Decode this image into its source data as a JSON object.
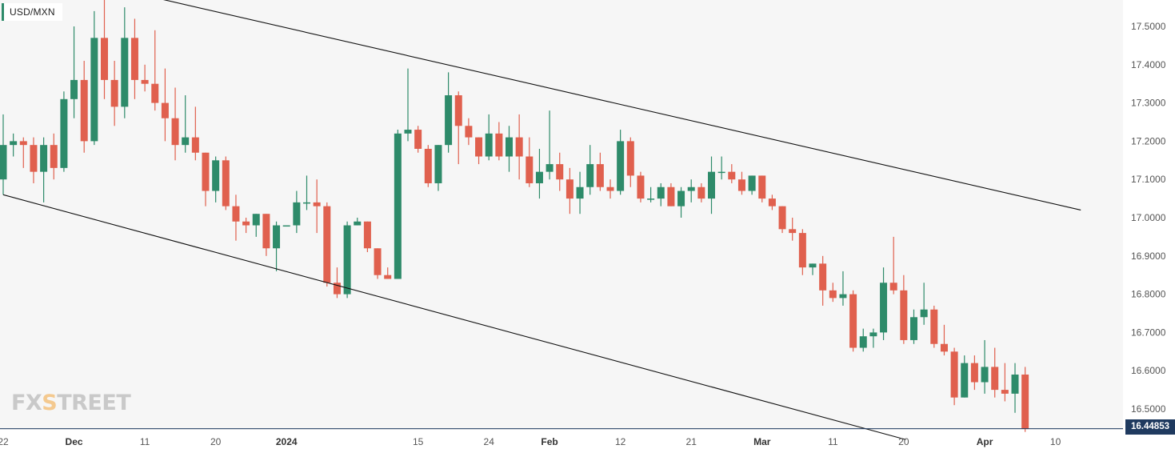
{
  "symbol": "USD/MXN",
  "logo": {
    "fx": "FX",
    "x": "S",
    "street": "TREET"
  },
  "last_price": "16.44853",
  "colors": {
    "up": "#2e8b6a",
    "down": "#e0604e",
    "channel": "#111111",
    "price_line": "#1f3a5f",
    "background": "#f6f6f6"
  },
  "chart_data": {
    "type": "candlestick",
    "title": "USD/MXN",
    "interval": "daily",
    "ylim": [
      16.42,
      17.58
    ],
    "y_ticks": [
      "17.5000",
      "17.4000",
      "17.3000",
      "17.2000",
      "17.1000",
      "17.0000",
      "16.9000",
      "16.8000",
      "16.7000",
      "16.6000",
      "16.5000"
    ],
    "x_ticks": [
      {
        "label": "22",
        "index": 0,
        "bold": false
      },
      {
        "label": "Dec",
        "index": 7,
        "bold": true
      },
      {
        "label": "11",
        "index": 14,
        "bold": false
      },
      {
        "label": "20",
        "index": 21,
        "bold": false
      },
      {
        "label": "2024",
        "index": 28,
        "bold": true
      },
      {
        "label": "15",
        "index": 41,
        "bold": false
      },
      {
        "label": "24",
        "index": 48,
        "bold": false
      },
      {
        "label": "Feb",
        "index": 54,
        "bold": true
      },
      {
        "label": "12",
        "index": 61,
        "bold": false
      },
      {
        "label": "21",
        "index": 68,
        "bold": false
      },
      {
        "label": "Mar",
        "index": 75,
        "bold": true
      },
      {
        "label": "11",
        "index": 82,
        "bold": false
      },
      {
        "label": "20",
        "index": 89,
        "bold": false
      },
      {
        "label": "Apr",
        "index": 97,
        "bold": true
      },
      {
        "label": "10",
        "index": 104,
        "bold": false
      }
    ],
    "candles": [
      [
        17.1,
        17.19,
        17.27,
        17.06
      ],
      [
        17.19,
        17.2,
        17.22,
        17.16
      ],
      [
        17.2,
        17.19,
        17.21,
        17.13
      ],
      [
        17.19,
        17.12,
        17.21,
        17.09
      ],
      [
        17.12,
        17.19,
        17.21,
        17.04
      ],
      [
        17.19,
        17.13,
        17.22,
        17.1
      ],
      [
        17.13,
        17.31,
        17.33,
        17.12
      ],
      [
        17.31,
        17.36,
        17.5,
        17.26
      ],
      [
        17.36,
        17.2,
        17.41,
        17.17
      ],
      [
        17.2,
        17.47,
        17.54,
        17.19
      ],
      [
        17.47,
        17.36,
        17.57,
        17.31
      ],
      [
        17.36,
        17.29,
        17.41,
        17.24
      ],
      [
        17.29,
        17.47,
        17.55,
        17.26
      ],
      [
        17.47,
        17.36,
        17.52,
        17.31
      ],
      [
        17.36,
        17.35,
        17.4,
        17.33
      ],
      [
        17.35,
        17.3,
        17.49,
        17.28
      ],
      [
        17.3,
        17.26,
        17.39,
        17.2
      ],
      [
        17.26,
        17.19,
        17.34,
        17.15
      ],
      [
        17.19,
        17.21,
        17.32,
        17.17
      ],
      [
        17.21,
        17.17,
        17.29,
        17.15
      ],
      [
        17.17,
        17.07,
        17.17,
        17.03
      ],
      [
        17.07,
        17.15,
        17.16,
        17.04
      ],
      [
        17.15,
        17.03,
        17.16,
        17.02
      ],
      [
        17.03,
        16.99,
        17.06,
        16.94
      ],
      [
        16.99,
        16.98,
        17.0,
        16.96
      ],
      [
        16.98,
        17.01,
        17.01,
        16.95
      ],
      [
        17.01,
        16.92,
        17.01,
        16.9
      ],
      [
        16.92,
        16.98,
        16.99,
        16.86
      ],
      [
        16.98,
        16.98,
        16.98,
        16.98
      ],
      [
        16.98,
        17.04,
        17.07,
        16.96
      ],
      [
        17.04,
        17.04,
        17.11,
        17.02
      ],
      [
        17.04,
        17.03,
        17.1,
        16.96
      ],
      [
        17.03,
        16.83,
        17.04,
        16.82
      ],
      [
        16.83,
        16.8,
        16.87,
        16.79
      ],
      [
        16.8,
        16.98,
        16.99,
        16.79
      ],
      [
        16.98,
        16.99,
        17.0,
        16.98
      ],
      [
        16.99,
        16.92,
        16.99,
        16.91
      ],
      [
        16.92,
        16.85,
        16.92,
        16.84
      ],
      [
        16.85,
        16.84,
        16.87,
        16.84
      ],
      [
        16.84,
        17.22,
        17.23,
        16.84
      ],
      [
        17.22,
        17.23,
        17.39,
        17.2
      ],
      [
        17.23,
        17.18,
        17.24,
        17.17
      ],
      [
        17.18,
        17.09,
        17.19,
        17.08
      ],
      [
        17.09,
        17.19,
        17.19,
        17.07
      ],
      [
        17.19,
        17.32,
        17.38,
        17.17
      ],
      [
        17.32,
        17.24,
        17.33,
        17.14
      ],
      [
        17.24,
        17.21,
        17.26,
        17.19
      ],
      [
        17.21,
        17.16,
        17.21,
        17.14
      ],
      [
        17.16,
        17.22,
        17.27,
        17.15
      ],
      [
        17.22,
        17.16,
        17.25,
        17.15
      ],
      [
        17.16,
        17.21,
        17.24,
        17.12
      ],
      [
        17.21,
        17.16,
        17.27,
        17.1
      ],
      [
        17.16,
        17.09,
        17.21,
        17.08
      ],
      [
        17.09,
        17.12,
        17.18,
        17.05
      ],
      [
        17.12,
        17.14,
        17.28,
        17.1
      ],
      [
        17.14,
        17.1,
        17.17,
        17.07
      ],
      [
        17.1,
        17.05,
        17.13,
        17.01
      ],
      [
        17.05,
        17.08,
        17.12,
        17.01
      ],
      [
        17.08,
        17.14,
        17.19,
        17.06
      ],
      [
        17.14,
        17.08,
        17.17,
        17.07
      ],
      [
        17.08,
        17.07,
        17.1,
        17.05
      ],
      [
        17.07,
        17.2,
        17.23,
        17.06
      ],
      [
        17.2,
        17.11,
        17.21,
        17.08
      ],
      [
        17.11,
        17.05,
        17.12,
        17.04
      ],
      [
        17.05,
        17.05,
        17.08,
        17.04
      ],
      [
        17.05,
        17.08,
        17.09,
        17.03
      ],
      [
        17.08,
        17.03,
        17.09,
        17.03
      ],
      [
        17.03,
        17.07,
        17.08,
        17.0
      ],
      [
        17.07,
        17.08,
        17.1,
        17.04
      ],
      [
        17.08,
        17.05,
        17.09,
        17.04
      ],
      [
        17.05,
        17.12,
        17.16,
        17.01
      ],
      [
        17.12,
        17.12,
        17.16,
        17.1
      ],
      [
        17.12,
        17.1,
        17.14,
        17.09
      ],
      [
        17.1,
        17.07,
        17.12,
        17.06
      ],
      [
        17.07,
        17.11,
        17.11,
        17.06
      ],
      [
        17.11,
        17.05,
        17.11,
        17.04
      ],
      [
        17.05,
        17.03,
        17.06,
        17.02
      ],
      [
        17.03,
        16.97,
        17.03,
        16.96
      ],
      [
        16.97,
        16.96,
        17.0,
        16.94
      ],
      [
        16.96,
        16.87,
        16.97,
        16.85
      ],
      [
        16.87,
        16.88,
        16.88,
        16.85
      ],
      [
        16.88,
        16.81,
        16.9,
        16.77
      ],
      [
        16.81,
        16.79,
        16.83,
        16.78
      ],
      [
        16.79,
        16.8,
        16.86,
        16.77
      ],
      [
        16.8,
        16.66,
        16.81,
        16.65
      ],
      [
        16.66,
        16.69,
        16.71,
        16.65
      ],
      [
        16.69,
        16.7,
        16.71,
        16.66
      ],
      [
        16.7,
        16.83,
        16.87,
        16.68
      ],
      [
        16.83,
        16.81,
        16.95,
        16.8
      ],
      [
        16.81,
        16.68,
        16.85,
        16.67
      ],
      [
        16.68,
        16.74,
        16.76,
        16.67
      ],
      [
        16.74,
        16.76,
        16.83,
        16.72
      ],
      [
        16.76,
        16.67,
        16.77,
        16.66
      ],
      [
        16.67,
        16.65,
        16.72,
        16.64
      ],
      [
        16.65,
        16.53,
        16.66,
        16.51
      ],
      [
        16.53,
        16.62,
        16.64,
        16.53
      ],
      [
        16.62,
        16.57,
        16.64,
        16.55
      ],
      [
        16.57,
        16.61,
        16.68,
        16.54
      ],
      [
        16.61,
        16.55,
        16.66,
        16.53
      ],
      [
        16.55,
        16.54,
        16.62,
        16.52
      ],
      [
        16.54,
        16.59,
        16.62,
        16.49
      ],
      [
        16.59,
        16.44853,
        16.61,
        16.44
      ]
    ],
    "channel_lines": [
      {
        "name": "upper",
        "points": [
          [
            "2023-11-30",
            17.6
          ],
          [
            "2024-04-10",
            17.02
          ]
        ]
      },
      {
        "name": "lower",
        "points": [
          [
            "2023-11-22",
            17.06
          ],
          [
            "2024-03-20",
            16.42
          ]
        ]
      }
    ],
    "channel_line_index_points": {
      "upper": [
        [
          10.9,
          17.6
        ],
        [
          106.5,
          17.02
        ]
      ],
      "lower": [
        [
          0,
          17.06
        ],
        [
          89.2,
          16.42
        ]
      ]
    }
  }
}
